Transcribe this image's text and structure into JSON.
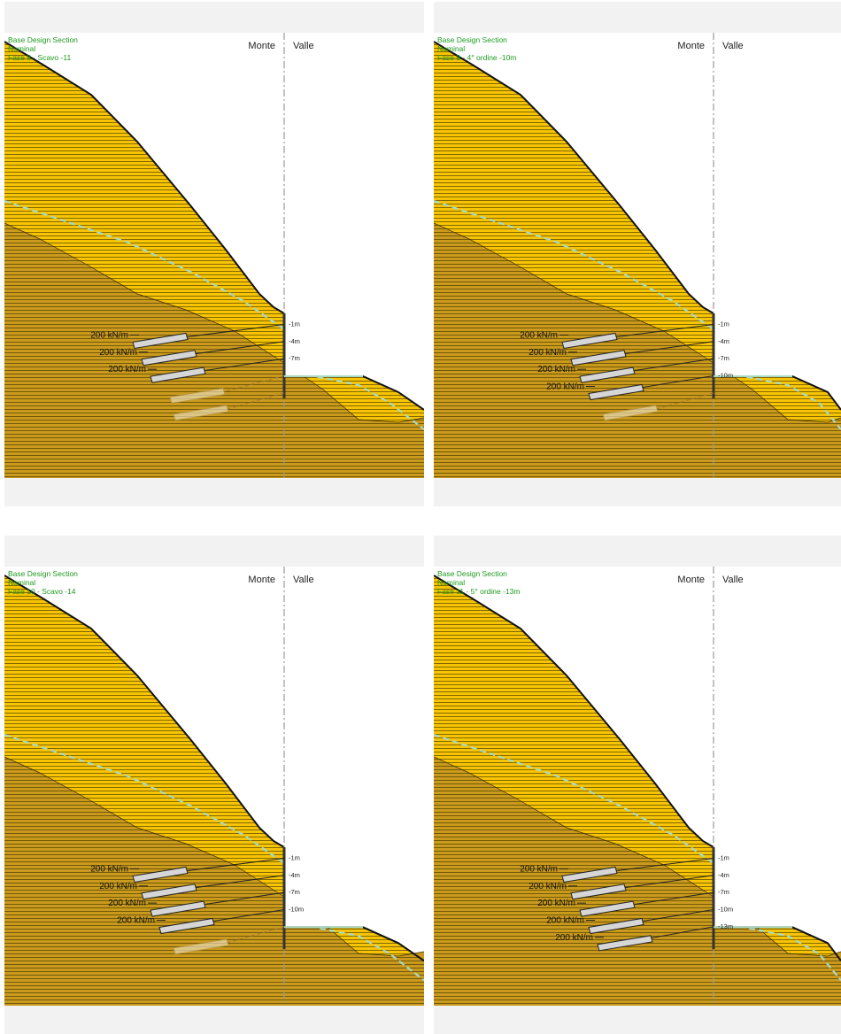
{
  "colors": {
    "background": "#ffffff",
    "frame": "#f2f2f2",
    "upper_soil": "#f6c400",
    "lower_soil": "#c99a1c",
    "hatch": "#3a2a00",
    "water_table": "#a9d9c4",
    "ground_line": "#111111",
    "label_green": "#1e9a1e",
    "anchor_fill": "#d6d6d6",
    "anchor_stroke": "#222222",
    "wall_axis": "#9a9a9a"
  },
  "panels": [
    {
      "title": "Base Design Section",
      "subtitle": "Nominal",
      "phase": "Fase 8 - Scavo -11",
      "left_side": "Monte",
      "right_side": "Valle",
      "levels": [
        "-1m",
        "-4m",
        "-7m"
      ],
      "anchors": [
        "200 kN/m",
        "200 kN/m",
        "200 kN/m"
      ],
      "excavation_depth_m": 11
    },
    {
      "title": "Base Design Section",
      "subtitle": "Nominal",
      "phase": "Fase 9 - 4° ordine -10m",
      "left_side": "Monte",
      "right_side": "Valle",
      "levels": [
        "-1m",
        "-4m",
        "-7m",
        "-10m"
      ],
      "anchors": [
        "200 kN/m",
        "200 kN/m",
        "200 kN/m",
        "200 kN/m"
      ],
      "excavation_depth_m": 11
    },
    {
      "title": "Base Design Section",
      "subtitle": "Nominal",
      "phase": "Fase 10 - Scavo -14",
      "left_side": "Monte",
      "right_side": "Valle",
      "levels": [
        "-1m",
        "-4m",
        "-7m",
        "-10m"
      ],
      "anchors": [
        "200 kN/m",
        "200 kN/m",
        "200 kN/m",
        "200 kN/m"
      ],
      "excavation_depth_m": 14
    },
    {
      "title": "Base Design Section",
      "subtitle": "Nominal",
      "phase": "Fase 11 - 5° ordine -13m",
      "left_side": "Monte",
      "right_side": "Valle",
      "levels": [
        "-1m",
        "-4m",
        "-7m",
        "-10m",
        "-13m"
      ],
      "anchors": [
        "200 kN/m",
        "200 kN/m",
        "200 kN/m",
        "200 kN/m",
        "200 kN/m"
      ],
      "excavation_depth_m": 14
    }
  ]
}
